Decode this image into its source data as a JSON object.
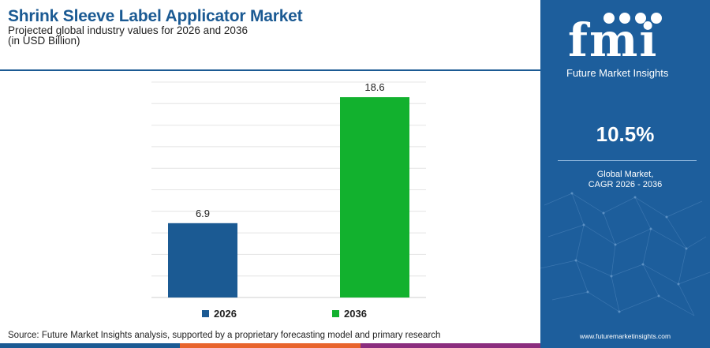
{
  "header": {
    "title": "Shrink Sleeve Label Applicator Market",
    "subtitle": "Projected global industry values for 2026 and 2036",
    "unit": "(in USD Billion)"
  },
  "chart_data": {
    "type": "bar",
    "categories": [
      "2026",
      "2036"
    ],
    "values": [
      6.9,
      18.6
    ],
    "value_labels": [
      "6.9",
      "18.6"
    ],
    "colors": [
      "#1b5a93",
      "#12b12e"
    ],
    "ylim": [
      0,
      20
    ],
    "grid": true,
    "legend_position": "bottom"
  },
  "legend": {
    "items": [
      {
        "label": "2026",
        "color": "#1b5a93"
      },
      {
        "label": "2036",
        "color": "#12b12e"
      }
    ]
  },
  "source": "Source: Future Market Insights analysis, supported by a proprietary forecasting model and primary research",
  "side_panel": {
    "logo_text": "fmi",
    "logo_subtext": "Future Market Insights",
    "cagr_value": "10.5%",
    "cagr_label_line1": "Global Market,",
    "cagr_label_line2": "CAGR 2026 - 2036",
    "website": "www.futuremarketinsights.com"
  },
  "colors": {
    "brand_blue": "#1b5a93",
    "panel_blue": "#1d5e9c",
    "accent_green": "#12b12e",
    "stripe": [
      "#1b5a93",
      "#e8642c",
      "#8b2d7e"
    ]
  }
}
